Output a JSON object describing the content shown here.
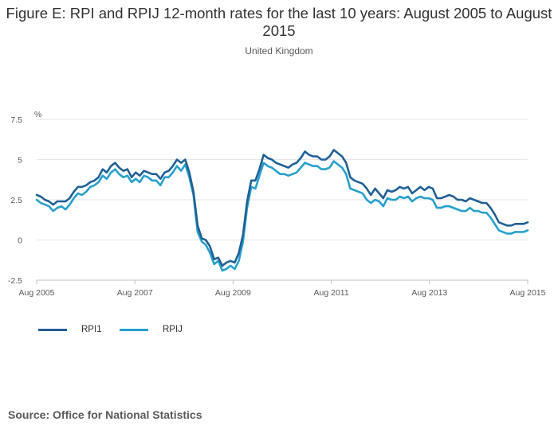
{
  "title": "Figure E: RPI and RPIJ 12-month rates for the last 10 years: August 2005 to August 2015",
  "subtitle": "United Kingdom",
  "source": "Source: Office for National Statistics",
  "colors": {
    "RPI1": "#206095",
    "RPIJ": "#27A0CC",
    "grid": "#e6e6e6"
  },
  "chart_data": {
    "type": "line",
    "title": "Figure E: RPI and RPIJ 12-month rates for the last 10 years: August 2005 to August 2015",
    "subtitle": "United Kingdom",
    "ylabel": "%",
    "ylim": [
      -2.5,
      7.5
    ],
    "yticks": [
      -2.5,
      0,
      2.5,
      5,
      7.5
    ],
    "ytick_labels": [
      "-2.5",
      "0",
      "2.5",
      "5",
      "7.5"
    ],
    "xticks": [
      "Aug 2005",
      "Aug 2007",
      "Aug 2009",
      "Aug 2011",
      "Aug 2013",
      "Aug 2015"
    ],
    "x_start": "Aug 2005",
    "x_end": "Aug 2015",
    "grid": "horizontal",
    "legend": "bottom-left",
    "series": [
      {
        "name": "RPI1",
        "values": [
          2.8,
          2.7,
          2.5,
          2.4,
          2.2,
          2.4,
          2.4,
          2.4,
          2.6,
          3.0,
          3.3,
          3.3,
          3.4,
          3.6,
          3.7,
          3.9,
          4.4,
          4.2,
          4.6,
          4.8,
          4.5,
          4.3,
          4.4,
          3.9,
          4.2,
          4.0,
          4.3,
          4.2,
          4.1,
          4.1,
          3.8,
          4.2,
          4.3,
          4.6,
          5.0,
          4.8,
          5.0,
          4.2,
          3.0,
          0.9,
          0.1,
          0.0,
          -0.4,
          -1.2,
          -1.1,
          -1.6,
          -1.4,
          -1.3,
          -1.4,
          -0.8,
          0.3,
          2.4,
          3.7,
          3.7,
          4.4,
          5.3,
          5.1,
          5.0,
          4.8,
          4.7,
          4.6,
          4.5,
          4.7,
          4.8,
          5.1,
          5.5,
          5.3,
          5.2,
          5.2,
          5.0,
          5.0,
          5.2,
          5.6,
          5.4,
          5.2,
          4.8,
          3.9,
          3.7,
          3.6,
          3.5,
          3.2,
          2.8,
          3.2,
          2.9,
          2.6,
          3.1,
          3.0,
          3.1,
          3.3,
          3.2,
          3.3,
          2.9,
          3.1,
          3.3,
          3.1,
          3.3,
          3.2,
          2.6,
          2.6,
          2.7,
          2.8,
          2.7,
          2.5,
          2.5,
          2.4,
          2.6,
          2.5,
          2.4,
          2.3,
          2.3,
          2.0,
          1.6,
          1.1,
          1.0,
          0.9,
          0.9,
          1.0,
          1.0,
          1.0,
          1.1
        ]
      },
      {
        "name": "RPIJ",
        "values": [
          2.5,
          2.3,
          2.2,
          2.1,
          1.8,
          2.0,
          2.1,
          1.9,
          2.2,
          2.6,
          2.9,
          2.8,
          3.0,
          3.3,
          3.4,
          3.6,
          4.0,
          3.8,
          4.2,
          4.4,
          4.1,
          3.9,
          4.0,
          3.6,
          3.8,
          3.6,
          4.0,
          3.9,
          3.7,
          3.7,
          3.4,
          3.9,
          3.9,
          4.2,
          4.6,
          4.3,
          4.7,
          3.9,
          2.8,
          0.5,
          -0.1,
          -0.3,
          -0.8,
          -1.5,
          -1.3,
          -1.9,
          -1.8,
          -1.6,
          -1.8,
          -1.3,
          -0.1,
          2.0,
          3.3,
          3.2,
          4.0,
          4.8,
          4.6,
          4.5,
          4.3,
          4.1,
          4.1,
          4.0,
          4.1,
          4.2,
          4.5,
          4.8,
          4.7,
          4.6,
          4.6,
          4.4,
          4.4,
          4.5,
          4.9,
          4.7,
          4.5,
          4.1,
          3.2,
          3.1,
          3.0,
          2.9,
          2.5,
          2.3,
          2.5,
          2.4,
          2.1,
          2.6,
          2.5,
          2.5,
          2.7,
          2.6,
          2.7,
          2.4,
          2.6,
          2.7,
          2.6,
          2.6,
          2.5,
          2.0,
          2.0,
          2.1,
          2.1,
          2.0,
          1.9,
          1.8,
          1.8,
          2.0,
          1.8,
          1.8,
          1.7,
          1.7,
          1.4,
          1.0,
          0.6,
          0.5,
          0.4,
          0.4,
          0.5,
          0.5,
          0.5,
          0.6
        ]
      }
    ]
  }
}
